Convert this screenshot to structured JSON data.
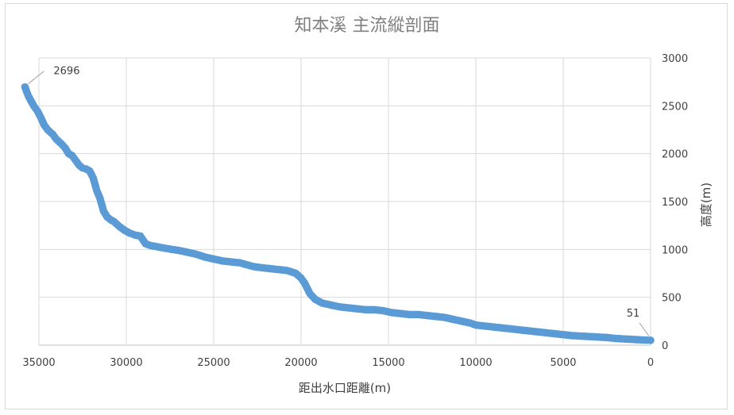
{
  "chart_data": {
    "type": "scatter",
    "title": "知本溪 主流縱剖面",
    "xlabel": "距出水口距離(m)",
    "ylabel": "高度(m)",
    "x_reversed": true,
    "xlim": [
      0,
      35000
    ],
    "ylim": [
      0,
      3000
    ],
    "x_ticks": [
      35000,
      30000,
      25000,
      20000,
      15000,
      10000,
      5000,
      0
    ],
    "y_ticks": [
      0,
      500,
      1000,
      1500,
      2000,
      2500,
      3000
    ],
    "grid": true,
    "legend": "none",
    "point_color": "#5b9bd5",
    "series": [
      {
        "x": [
          35800,
          35600,
          35300,
          35100,
          34900,
          34700,
          34500,
          34200,
          34000,
          33700,
          33500,
          33300,
          33100,
          32900,
          32700,
          32500,
          32300,
          32100,
          31900,
          31700,
          31500,
          31300,
          31100,
          30900,
          30700,
          30400,
          30100,
          29800,
          29500,
          29200,
          28900,
          28600,
          28300,
          28000,
          27700,
          27400,
          27000,
          26500,
          26000,
          25500,
          25000,
          24500,
          24000,
          23500,
          23100,
          22700,
          22300,
          21800,
          21300,
          20800,
          20300,
          20000,
          19800,
          19500,
          19200,
          18800,
          18300,
          17800,
          17300,
          16800,
          16300,
          15800,
          15300,
          14800,
          14300,
          13800,
          13300,
          12800,
          12300,
          11800,
          11300,
          10800,
          10300,
          10000,
          9500,
          9000,
          8500,
          8000,
          7500,
          7000,
          6500,
          6000,
          5500,
          5000,
          4500,
          4000,
          3500,
          3000,
          2500,
          2000,
          1500,
          1000,
          500,
          200,
          0
        ],
        "y": [
          2696,
          2600,
          2500,
          2450,
          2380,
          2300,
          2250,
          2200,
          2150,
          2100,
          2060,
          2000,
          1980,
          1930,
          1880,
          1850,
          1840,
          1820,
          1750,
          1620,
          1530,
          1400,
          1340,
          1310,
          1290,
          1240,
          1200,
          1170,
          1150,
          1140,
          1060,
          1040,
          1030,
          1020,
          1010,
          1000,
          990,
          970,
          950,
          920,
          900,
          880,
          870,
          860,
          840,
          820,
          810,
          800,
          790,
          780,
          750,
          700,
          650,
          540,
          480,
          440,
          420,
          400,
          390,
          380,
          370,
          370,
          360,
          340,
          330,
          320,
          320,
          310,
          300,
          290,
          270,
          250,
          230,
          210,
          200,
          190,
          180,
          170,
          160,
          150,
          140,
          130,
          120,
          110,
          100,
          95,
          90,
          85,
          80,
          70,
          65,
          60,
          55,
          52,
          51
        ]
      }
    ],
    "data_labels": [
      {
        "x": 35800,
        "y": 2696,
        "text": "2696"
      },
      {
        "x": 0,
        "y": 51,
        "text": "51"
      }
    ]
  }
}
